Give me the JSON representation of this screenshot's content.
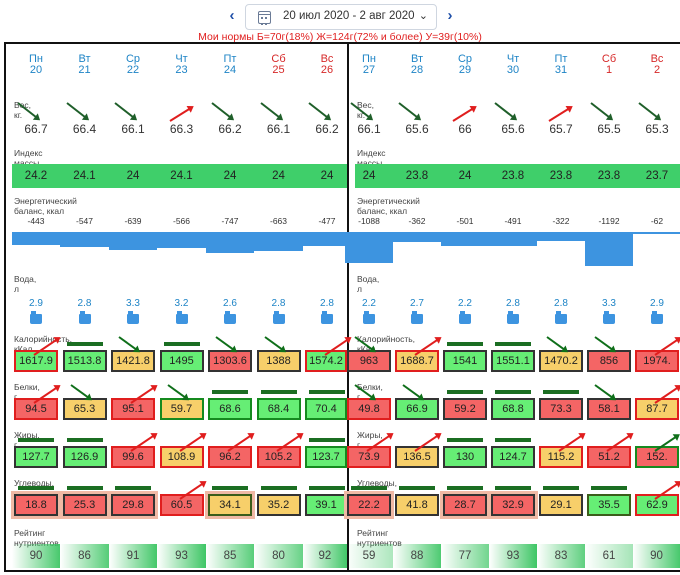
{
  "header": {
    "date_range": "20 июл 2020 - 2 авг 2020",
    "norms": "Мои нормы Б=70г(18%) Ж=124г(72% и более) У=39г(10%)"
  },
  "labels": {
    "weight": "Вес, кг.",
    "bmi": "Индекс массы тела",
    "energy": "Энергетический баланс, ккал",
    "water": "Вода, л",
    "calories": "Калорийность, кКал",
    "protein": "Белки, г",
    "fat": "Жиры, г",
    "carbs": "Углеводы, г",
    "rating": "Рейтинг нутриентов"
  },
  "week1": {
    "days": [
      {
        "name": "Пн",
        "num": "20",
        "weekend": false
      },
      {
        "name": "Вт",
        "num": "21",
        "weekend": false
      },
      {
        "name": "Ср",
        "num": "22",
        "weekend": false
      },
      {
        "name": "Чт",
        "num": "23",
        "weekend": false
      },
      {
        "name": "Пт",
        "num": "24",
        "weekend": false
      },
      {
        "name": "Сб",
        "num": "25",
        "weekend": true
      },
      {
        "name": "Вс",
        "num": "26",
        "weekend": true
      }
    ],
    "weight": [
      "66.7",
      "66.4",
      "66.1",
      "66.3",
      "66.2",
      "66.1",
      "66.2"
    ],
    "weight_trend": [
      "down",
      "down",
      "down",
      "up",
      "down",
      "down",
      "down"
    ],
    "bmi": [
      "24.2",
      "24.1",
      "24",
      "24.1",
      "24",
      "24",
      "24"
    ],
    "energy": [
      "-443",
      "-547",
      "-639",
      "-566",
      "-747",
      "-663",
      "-477"
    ],
    "energy_values": [
      -443,
      -547,
      -639,
      -566,
      -747,
      -663,
      -477
    ],
    "water": [
      "2.9",
      "2.8",
      "3.3",
      "3.2",
      "2.6",
      "2.8",
      "2.8"
    ],
    "calories": [
      "1617.9",
      "1513.8",
      "1421.8",
      "1495",
      "1303.6",
      "1388",
      "1574.2"
    ],
    "protein": [
      "94.5",
      "65.3",
      "95.1",
      "59.7",
      "68.6",
      "68.4",
      "70.4"
    ],
    "fat": [
      "127.7",
      "126.9",
      "99.6",
      "108.9",
      "96.2",
      "105.2",
      "123.7"
    ],
    "carbs": [
      "18.8",
      "25.3",
      "29.8",
      "60.5",
      "34.1",
      "35.2",
      "39.1"
    ],
    "rating": [
      "90",
      "86",
      "91",
      "93",
      "85",
      "80",
      "92"
    ]
  },
  "week2": {
    "days": [
      {
        "name": "Пн",
        "num": "27",
        "weekend": false
      },
      {
        "name": "Вт",
        "num": "28",
        "weekend": false
      },
      {
        "name": "Ср",
        "num": "29",
        "weekend": false
      },
      {
        "name": "Чт",
        "num": "30",
        "weekend": false
      },
      {
        "name": "Пт",
        "num": "31",
        "weekend": false
      },
      {
        "name": "Сб",
        "num": "1",
        "weekend": true
      },
      {
        "name": "Вс",
        "num": "2",
        "weekend": true
      }
    ],
    "weight": [
      "66.1",
      "65.6",
      "66",
      "65.6",
      "65.7",
      "65.5",
      "65.3"
    ],
    "weight_trend": [
      "down",
      "down",
      "up",
      "down",
      "up",
      "down",
      "down"
    ],
    "bmi": [
      "24",
      "23.8",
      "24",
      "23.8",
      "23.8",
      "23.8",
      "23.7"
    ],
    "energy": [
      "-1088",
      "-362",
      "-501",
      "-491",
      "-322",
      "-1192",
      "-62"
    ],
    "energy_values": [
      -1088,
      -362,
      -501,
      -491,
      -322,
      -1192,
      -62
    ],
    "water": [
      "2.2",
      "2.7",
      "2.2",
      "2.8",
      "2.8",
      "3.3",
      "2.9"
    ],
    "calories": [
      "963",
      "1688.7",
      "1541",
      "1551.1",
      "1470.2",
      "856",
      "1974."
    ],
    "protein": [
      "49.8",
      "66.9",
      "59.2",
      "68.8",
      "73.3",
      "58.1",
      "87.7"
    ],
    "fat": [
      "73.9",
      "136.5",
      "130",
      "124.7",
      "115.2",
      "51.2",
      "152."
    ],
    "carbs": [
      "22.2",
      "41.8",
      "28.7",
      "32.9",
      "29.1",
      "35.5",
      "62.9"
    ],
    "rating": [
      "59",
      "88",
      "77",
      "93",
      "83",
      "61",
      "90"
    ]
  },
  "colors": {
    "accent_blue": "#1e84c6",
    "weekend_red": "#d62828",
    "bmi_green": "#3fcf6a",
    "energy_bar": "#3d94e0"
  }
}
